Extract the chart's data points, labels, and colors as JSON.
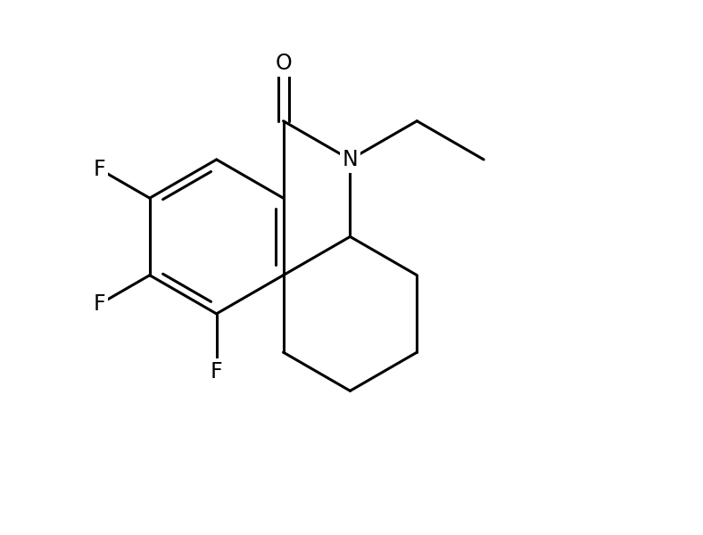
{
  "background_color": "#ffffff",
  "line_color": "#000000",
  "line_width": 2.2,
  "font_size": 17,
  "fig_width": 7.88,
  "fig_height": 6.0,
  "dpi": 100,
  "xlim": [
    -3.5,
    5.0
  ],
  "ylim": [
    -3.8,
    3.0
  ]
}
